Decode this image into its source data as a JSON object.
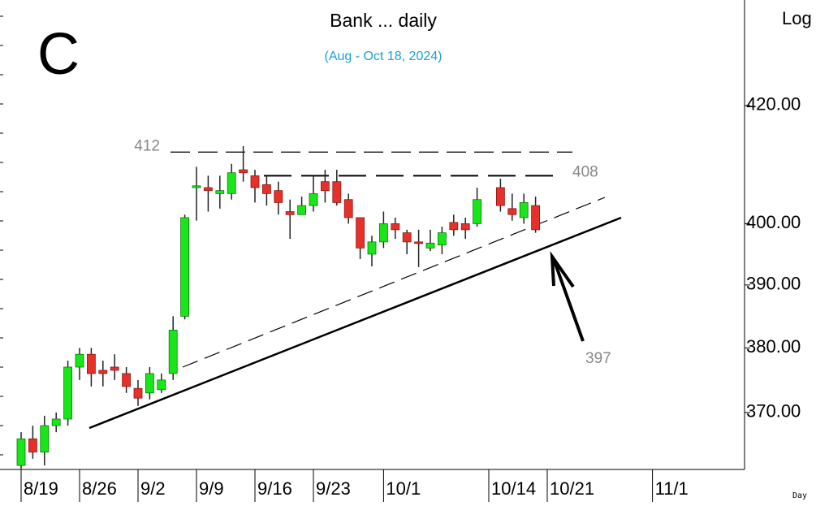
{
  "chart_data": {
    "type": "candlestick",
    "title": "Bank ... daily",
    "subtitle": "(Aug - Oct 18, 2024)",
    "symbol": "C",
    "y_axis_label": "Log",
    "x_axis_label": "Day",
    "log_scale": true,
    "categories": [
      "8/19",
      null,
      null,
      null,
      null,
      "8/26",
      null,
      null,
      null,
      null,
      "9/2",
      null,
      null,
      null,
      null,
      "9/9",
      null,
      null,
      null,
      null,
      "9/16",
      null,
      null,
      null,
      null,
      "9/23",
      null,
      null,
      null,
      null,
      null,
      "10/1",
      null,
      null,
      null,
      null,
      null,
      null,
      null,
      null,
      "10/14",
      null,
      null,
      null,
      null,
      "10/21",
      null,
      null,
      null,
      null,
      null,
      null,
      null,
      null,
      "11/1",
      null,
      null,
      null,
      null,
      null,
      null,
      null
    ],
    "open": [
      362,
      366,
      364,
      368,
      369,
      377,
      379,
      376.5,
      377,
      376,
      373.7,
      373,
      373.5,
      376,
      385,
      406,
      406,
      405,
      405,
      409,
      408,
      406.5,
      405.5,
      402,
      401.5,
      403,
      407,
      407,
      404,
      401,
      395,
      397,
      400,
      398.5,
      397,
      396,
      396.5,
      400.2,
      400,
      400,
      null,
      406,
      402.5,
      401,
      403,
      null,
      null,
      null,
      null,
      null,
      null,
      null,
      null,
      null,
      null,
      null,
      null,
      null,
      null,
      null,
      null,
      null
    ],
    "high": [
      367,
      368,
      369.5,
      370,
      378,
      380,
      380,
      378,
      379,
      377,
      375,
      377,
      376,
      385,
      401.5,
      409.5,
      408,
      408,
      410,
      413,
      409,
      408,
      407,
      404,
      404.5,
      408,
      409,
      409,
      405,
      401,
      398,
      402,
      401,
      399,
      399,
      399,
      399.5,
      401.5,
      401,
      406,
      null,
      407.5,
      405,
      405,
      404.5,
      null,
      null,
      null,
      null,
      null,
      null,
      null,
      null,
      null,
      null,
      null,
      null,
      null,
      null,
      null,
      null,
      null
    ],
    "low": [
      361.5,
      363,
      362,
      367,
      368,
      375,
      374,
      374,
      375,
      373,
      371,
      372,
      373,
      375,
      384.5,
      400.5,
      402,
      402.5,
      404,
      407,
      403.5,
      403,
      401.5,
      397.5,
      401.5,
      402,
      403.5,
      403,
      400,
      394.2,
      393,
      396,
      397.5,
      395,
      392.9,
      395.5,
      395,
      398,
      397.5,
      399.5,
      null,
      402,
      400.5,
      400,
      398.5,
      null,
      null,
      null,
      null,
      null,
      null,
      null,
      null,
      null,
      null,
      null,
      null,
      null,
      null,
      null,
      null,
      null
    ],
    "close": [
      366,
      364,
      368,
      369,
      377,
      379,
      376,
      376,
      376.5,
      374,
      372.2,
      376,
      375,
      382.8,
      401,
      406.3,
      405.5,
      405.5,
      408.5,
      408.5,
      406,
      405,
      403.5,
      401.5,
      403,
      405,
      405.5,
      403.5,
      401,
      396,
      397,
      400,
      399,
      397,
      396.8,
      396.8,
      398.5,
      399,
      399,
      404,
      null,
      403,
      401.5,
      403.5,
      399,
      null,
      null,
      null,
      null,
      null,
      null,
      null,
      null,
      null,
      null,
      null,
      null,
      null,
      null,
      null,
      null,
      null
    ],
    "up_color": "#19e619",
    "down_color": "#e8302a",
    "ylim": [
      361.4,
      438.7
    ],
    "yticks": [
      {
        "value": 370,
        "label": "370.00"
      },
      {
        "value": 380,
        "label": "380.00"
      },
      {
        "value": 390,
        "label": "390.00"
      },
      {
        "value": 400,
        "label": "400.00"
      },
      {
        "value": 420,
        "label": "420.00"
      }
    ],
    "levels": [
      412,
      408
    ],
    "target": 397
  }
}
